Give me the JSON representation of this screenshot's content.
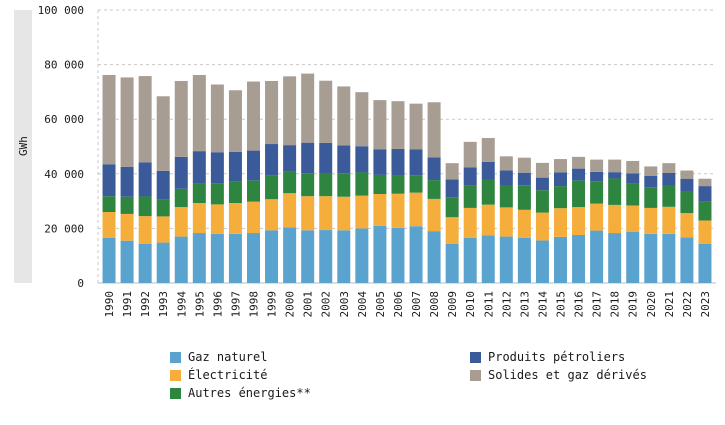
{
  "chart_data": {
    "type": "bar",
    "stacked": true,
    "title": "",
    "xlabel": "",
    "ylabel": "GWh",
    "ylim": [
      0,
      100000
    ],
    "yticks": [
      0,
      20000,
      40000,
      60000,
      80000,
      100000
    ],
    "ytick_labels": [
      "0",
      "20 000",
      "40 000",
      "60 000",
      "80 000",
      "100 000"
    ],
    "grid": "horizontal-dashed",
    "legend_position": "bottom",
    "categories": [
      "1990",
      "1991",
      "1992",
      "1993",
      "1994",
      "1995",
      "1996",
      "1997",
      "1998",
      "1999",
      "2000",
      "2001",
      "2002",
      "2003",
      "2004",
      "2005",
      "2006",
      "2007",
      "2008",
      "2009",
      "2010",
      "2011",
      "2012",
      "2013",
      "2014",
      "2015",
      "2016",
      "2017",
      "2018",
      "2019",
      "2020",
      "2021",
      "2022",
      "2023"
    ],
    "series": [
      {
        "name": "Gaz naturel",
        "color": "#5ba3cf",
        "values": [
          16500,
          15500,
          14300,
          14800,
          17000,
          18300,
          18000,
          18000,
          18300,
          19300,
          20400,
          19300,
          19400,
          19300,
          20000,
          20900,
          20200,
          20800,
          19000,
          14300,
          16500,
          17500,
          17000,
          16500,
          15600,
          16900,
          17600,
          19200,
          18300,
          18800,
          18000,
          18000,
          16700,
          14400
        ]
      },
      {
        "name": "Électricité",
        "color": "#f5ae3c",
        "values": [
          9500,
          9800,
          10200,
          9600,
          10800,
          11000,
          10800,
          11300,
          11500,
          11400,
          12500,
          12500,
          12400,
          12300,
          12000,
          11700,
          12500,
          12300,
          11800,
          9800,
          11000,
          11200,
          10700,
          10300,
          10200,
          10500,
          10200,
          9900,
          10300,
          9600,
          9500,
          9900,
          8900,
          8500
        ]
      },
      {
        "name": "Autres énergies**",
        "color": "#2e8540",
        "values": [
          5800,
          6300,
          7200,
          6100,
          6700,
          7100,
          7700,
          7800,
          7800,
          8600,
          7900,
          8400,
          8500,
          8600,
          8500,
          7000,
          6700,
          6400,
          6900,
          7300,
          8100,
          9200,
          8000,
          9000,
          8200,
          8100,
          9800,
          8200,
          9700,
          8200,
          7600,
          7800,
          8100,
          7000
        ]
      },
      {
        "name": "Produits pétroliers",
        "color": "#3a5a9a",
        "values": [
          11700,
          10900,
          12500,
          10600,
          11700,
          11900,
          11400,
          10900,
          10900,
          11600,
          9700,
          11200,
          11000,
          10200,
          9600,
          9400,
          9700,
          9400,
          8300,
          6500,
          6800,
          6500,
          5500,
          4600,
          4600,
          5000,
          4300,
          3400,
          2300,
          3500,
          4200,
          4600,
          4500,
          5600
        ]
      },
      {
        "name": "Solides et gaz dérivés",
        "color": "#a89d92",
        "values": [
          32700,
          32800,
          31600,
          27300,
          27800,
          27900,
          24800,
          22600,
          25300,
          23100,
          25200,
          25300,
          22800,
          21600,
          19800,
          18000,
          17500,
          16800,
          20200,
          6000,
          9300,
          8700,
          5200,
          5500,
          5400,
          4900,
          4300,
          4500,
          4600,
          4600,
          3400,
          3600,
          3000,
          2700
        ]
      }
    ]
  },
  "legend": {
    "items": [
      {
        "label": "Gaz naturel",
        "color": "#5ba3cf"
      },
      {
        "label": "Électricité",
        "color": "#f5ae3c"
      },
      {
        "label": "Autres énergies**",
        "color": "#2e8540"
      },
      {
        "label": "Produits pétroliers",
        "color": "#3a5a9a"
      },
      {
        "label": "Solides et gaz dérivés",
        "color": "#a89d92"
      }
    ]
  }
}
